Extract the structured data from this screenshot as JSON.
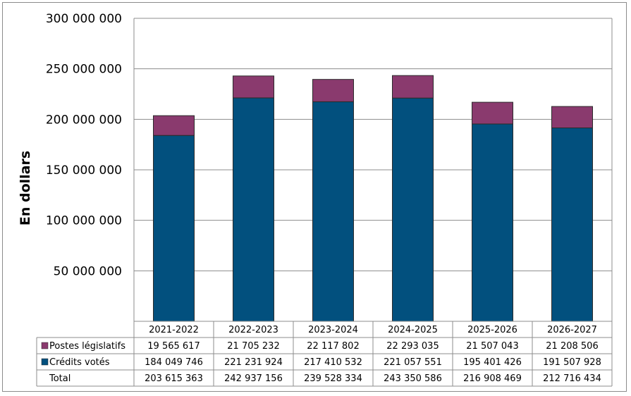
{
  "chart_data": {
    "type": "bar",
    "stacked": true,
    "ylabel": "En dollars",
    "ylim": [
      0,
      300000000
    ],
    "yticks": [
      50000000,
      100000000,
      150000000,
      200000000,
      250000000,
      300000000
    ],
    "ytick_labels": [
      "50 000 000",
      "100 000 000",
      "150 000 000",
      "200 000 000",
      "250 000 000",
      "300 000 000"
    ],
    "grid": true,
    "categories": [
      "2021-2022",
      "2022-2023",
      "2023-2024",
      "2024-2025",
      "2025-2026",
      "2026-2027"
    ],
    "series": [
      {
        "name": "Crédits votés",
        "color": "#02507e",
        "values": [
          184049746,
          221231924,
          217410532,
          221057551,
          195401426,
          191507928
        ],
        "labels": [
          "184 049 746",
          "221 231 924",
          "217 410 532",
          "221 057 551",
          "195 401 426",
          "191 507 928"
        ]
      },
      {
        "name": "Postes législatifs",
        "color": "#8a3a6e",
        "values": [
          19565617,
          21705232,
          22117802,
          22293035,
          21507043,
          21208506
        ],
        "labels": [
          "19 565 617",
          "21 705 232",
          "22 117 802",
          "22 293 035",
          "21 507 043",
          "21 208 506"
        ]
      }
    ],
    "total": {
      "name": "Total",
      "values": [
        203615363,
        242937156,
        239528334,
        243350586,
        216908469,
        212716434
      ],
      "labels": [
        "203 615 363",
        "242 937 156",
        "239 528 334",
        "243 350 586",
        "216 908 469",
        "212 716 434"
      ]
    },
    "table_row_order": [
      "Postes législatifs",
      "Crédits votés",
      "Total"
    ]
  }
}
